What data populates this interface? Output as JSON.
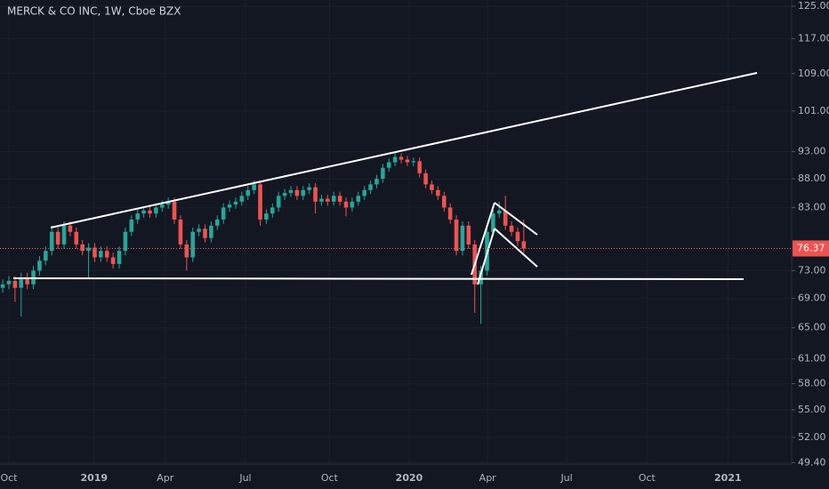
{
  "chart_data": {
    "type": "candlestick",
    "title": "MERCK & CO INC, 1W, Cboe BZX",
    "x": [
      -1,
      0,
      1,
      2,
      3,
      4,
      5,
      6,
      7,
      8,
      9,
      10,
      11,
      12,
      13,
      14,
      15,
      16,
      17,
      18,
      19,
      20,
      21,
      22,
      23,
      24,
      25,
      26,
      27,
      28,
      29,
      30,
      31,
      32,
      33,
      34,
      35,
      36,
      37,
      38,
      39,
      40,
      41,
      42,
      43,
      44,
      45,
      46,
      47,
      48,
      49,
      50,
      51,
      52,
      53,
      54,
      55,
      56,
      57,
      58,
      59,
      60,
      61,
      62,
      63,
      64,
      65,
      66,
      67,
      68,
      69,
      70,
      71,
      72,
      73,
      74,
      75,
      76,
      77,
      78,
      79,
      80,
      81,
      82,
      83,
      84
    ],
    "open": [
      70.5,
      71,
      71.5,
      70.5,
      72,
      71,
      73,
      74.5,
      76,
      79,
      77,
      80,
      79,
      77,
      76,
      76.5,
      75,
      76,
      75,
      74,
      76,
      79,
      81,
      82,
      82.5,
      82,
      83,
      83.5,
      84,
      81,
      77,
      75,
      79,
      79.5,
      78,
      80,
      81,
      83,
      83.5,
      84,
      85,
      86,
      87,
      81,
      82,
      83,
      85,
      85.5,
      86,
      85,
      86,
      86.5,
      84,
      84.5,
      84,
      85,
      84,
      83,
      84,
      85,
      86,
      87,
      88,
      90,
      91,
      92,
      91.5,
      91,
      91.2,
      89,
      87,
      86,
      85,
      83,
      81,
      76,
      80,
      77,
      71,
      73,
      79,
      82,
      82.5,
      80,
      79,
      77.5
    ],
    "high": [
      71.7,
      72.2,
      72.2,
      72.7,
      72.7,
      73.7,
      75.2,
      76.7,
      80,
      79.7,
      80.7,
      80.7,
      79.7,
      77.7,
      77.2,
      77.2,
      76.7,
      76.7,
      75.7,
      76.7,
      79.7,
      81.7,
      82.7,
      83.2,
      83.2,
      83.7,
      84.2,
      84.7,
      84.7,
      81.7,
      77.7,
      79.7,
      80.2,
      80.2,
      80.7,
      81.7,
      83.7,
      84.2,
      84.7,
      85.7,
      86.7,
      87.7,
      87.7,
      82.7,
      83.7,
      85.7,
      86.2,
      86.7,
      86.7,
      86.7,
      87.2,
      87.2,
      85.2,
      85.2,
      85.7,
      85.7,
      84.7,
      84.7,
      85.7,
      86.7,
      87.7,
      88.7,
      90.7,
      91.7,
      92.7,
      92.7,
      92.2,
      91.9,
      91.9,
      89.7,
      87.7,
      86.7,
      85.7,
      83.7,
      81.7,
      80.7,
      80.7,
      77.7,
      73.7,
      79.7,
      82.7,
      84,
      85,
      80.7,
      79.7,
      81
    ],
    "low": [
      69.8,
      70.3,
      68.5,
      66.5,
      70.3,
      70.3,
      72.3,
      73.8,
      75.3,
      76.3,
      76.3,
      78.3,
      76.3,
      75.3,
      72,
      74.3,
      74.3,
      74.3,
      73.3,
      73.3,
      75.3,
      78.3,
      80.3,
      81.3,
      81.3,
      81.3,
      82.3,
      82.8,
      80.3,
      76.3,
      73,
      74.3,
      78.3,
      77.3,
      77.3,
      79.3,
      80.3,
      82.3,
      82.8,
      83.3,
      84.3,
      85.3,
      80,
      80.3,
      81.3,
      82.3,
      84.3,
      84.8,
      84.3,
      84.3,
      85.3,
      82,
      83.3,
      83.3,
      83.3,
      83.3,
      81.5,
      82.3,
      83.3,
      84.3,
      85.3,
      86.3,
      87.3,
      89.3,
      90.3,
      90.8,
      90.3,
      90.3,
      88.3,
      86.3,
      85.3,
      84.3,
      82.3,
      80.3,
      75.3,
      75.3,
      76.3,
      67,
      65.5,
      72.3,
      78.3,
      81.3,
      79.3,
      78.3,
      76.8,
      75.7
    ],
    "close": [
      71,
      71.5,
      70.5,
      72,
      71,
      73,
      74.5,
      76,
      79,
      77,
      80,
      79,
      77,
      76,
      76.5,
      75,
      76,
      75,
      74,
      76,
      79,
      81,
      82,
      82.5,
      82,
      83,
      83.5,
      84,
      81,
      77,
      75,
      79,
      79.5,
      78,
      80,
      81,
      83,
      83.5,
      84,
      85,
      86,
      87,
      81,
      82,
      83,
      85,
      85.5,
      86,
      85,
      86,
      86.5,
      84,
      84.5,
      84,
      85,
      84,
      83,
      84,
      85,
      86,
      87,
      88,
      90,
      91,
      92,
      91.5,
      91,
      91.2,
      89,
      87,
      86,
      85,
      83,
      81,
      76,
      80,
      77,
      71,
      73,
      79,
      82,
      82.5,
      80,
      79,
      77.5,
      76.37
    ],
    "up_color": "#26a69a",
    "down_color": "#ef5350",
    "log_scale": true,
    "grid": true,
    "ylim": [
      49.25,
      126.6
    ],
    "yticks": [
      {
        "value": 125,
        "label": "125.00"
      },
      {
        "value": 117,
        "label": "117.00"
      },
      {
        "value": 109,
        "label": "109.00"
      },
      {
        "value": 101,
        "label": "101.00"
      },
      {
        "value": 93,
        "label": "93.00"
      },
      {
        "value": 88,
        "label": "88.00"
      },
      {
        "value": 83,
        "label": "83.00"
      },
      {
        "value": 73,
        "label": "73.00"
      },
      {
        "value": 69,
        "label": "69.00"
      },
      {
        "value": 65,
        "label": "65.00"
      },
      {
        "value": 61,
        "label": "61.00"
      },
      {
        "value": 58,
        "label": "58.00"
      },
      {
        "value": 55,
        "label": "55.00"
      },
      {
        "value": 52,
        "label": "52.00"
      },
      {
        "value": 49.4,
        "label": "49.40"
      }
    ],
    "xlim": [
      -1.45,
      127.7
    ],
    "xticks": [
      {
        "value": 0,
        "label": "Oct"
      },
      {
        "value": 13.9,
        "label": "2019"
      },
      {
        "value": 25.5,
        "label": "Apr"
      },
      {
        "value": 38.6,
        "label": "Jul"
      },
      {
        "value": 52.3,
        "label": "Oct"
      },
      {
        "value": 65.3,
        "label": "2020"
      },
      {
        "value": 78.1,
        "label": "Apr"
      },
      {
        "value": 91,
        "label": "Jul"
      },
      {
        "value": 104.1,
        "label": "Oct"
      },
      {
        "value": 117.3,
        "label": "2021"
      }
    ]
  }
}
